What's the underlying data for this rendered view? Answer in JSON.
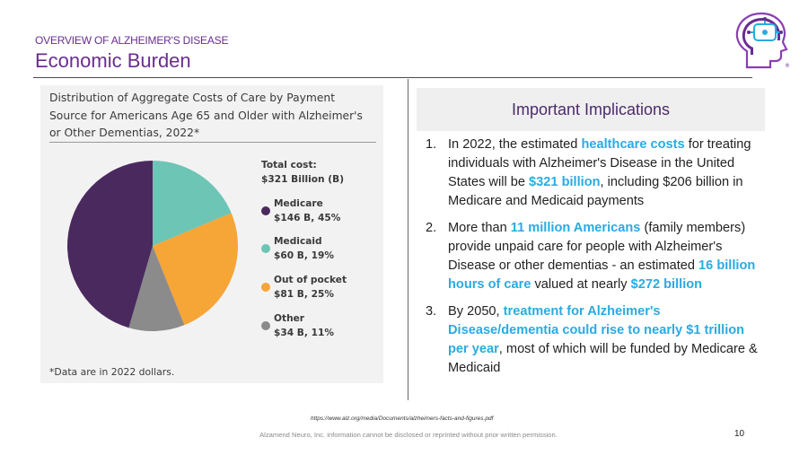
{
  "header": {
    "kicker": "OVERVIEW OF ALZHEIMER'S DISEASE",
    "title": "Economic Burden"
  },
  "logo": {
    "icon": "head-brain-circuit-icon",
    "mark": "®"
  },
  "figure": {
    "heading_lines": [
      "Distribution of Aggregate Costs of Care by Payment",
      "Source for Americans Age 65 and Older with Alzheimer's",
      "or Other Dementias, 2022*"
    ],
    "total_line1": "Total cost:",
    "total_line2": "$321 Billion (B)",
    "footnote": "*Data are in 2022 dollars."
  },
  "chart_data": {
    "type": "pie",
    "title": "Distribution of Aggregate Costs of Care by Payment Source for Americans Age 65 and Older with Alzheimer's or Other Dementias, 2022*",
    "total": "$321 Billion (B)",
    "unit": "Billion USD",
    "slices": [
      {
        "name": "Medicaid",
        "label": "$60 B, 19%",
        "value": 60,
        "percent": 19,
        "color": "#6dc5b6"
      },
      {
        "name": "Out of pocket",
        "label": "$81 B, 25%",
        "value": 81,
        "percent": 25,
        "color": "#f6a537"
      },
      {
        "name": "Other",
        "label": "$34 B, 11%",
        "value": 34,
        "percent": 11,
        "color": "#8b8b8b"
      },
      {
        "name": "Medicare",
        "label": "$146 B, 45%",
        "value": 146,
        "percent": 45,
        "color": "#4a2a5e"
      }
    ],
    "legend_order": [
      "Medicare",
      "Medicaid",
      "Out of pocket",
      "Other"
    ],
    "legend_position": "right"
  },
  "implications": {
    "title": "Important Implications",
    "items": [
      {
        "num": "1.",
        "parts": [
          {
            "t": "In 2022, the estimated "
          },
          {
            "t": "healthcare costs",
            "hl": true
          },
          {
            "t": " for treating individuals with Alzheimer's Disease in the United States will be "
          },
          {
            "t": "$321 billion",
            "hl": true
          },
          {
            "t": ", including $206 billion in Medicare and Medicaid payments"
          }
        ]
      },
      {
        "num": "2.",
        "parts": [
          {
            "t": "More than "
          },
          {
            "t": "11 million Americans",
            "hl": true
          },
          {
            "t": " (family members) provide unpaid care for people with Alzheimer's Disease or other dementias - an estimated "
          },
          {
            "t": "16 billion hours of care",
            "hl": true
          },
          {
            "t": " valued at nearly "
          },
          {
            "t": "$272 billion",
            "hl": true
          }
        ]
      },
      {
        "num": "3.",
        "parts": [
          {
            "t": "By 2050, "
          },
          {
            "t": "treatment for Alzheimer's Disease/dementia could rise to nearly $1 trillion per year",
            "hl": true
          },
          {
            "t": ", most of which will be funded by Medicare & Medicaid"
          }
        ]
      }
    ]
  },
  "footer": {
    "source_url": "https://www.alz.org/media/Documents/alzheimers-facts-and-figures.pdf",
    "confidentiality": "Alzamend Neuro, Inc. information cannot be disclosed or reprinted without prior written permission.",
    "page_number": "10"
  },
  "colors": {
    "brand_purple": "#6a2d91",
    "highlight_blue": "#29abe2",
    "medicare": "#4a2a5e",
    "medicaid": "#6dc5b6",
    "out_of_pocket": "#f6a537",
    "other": "#8b8b8b"
  }
}
